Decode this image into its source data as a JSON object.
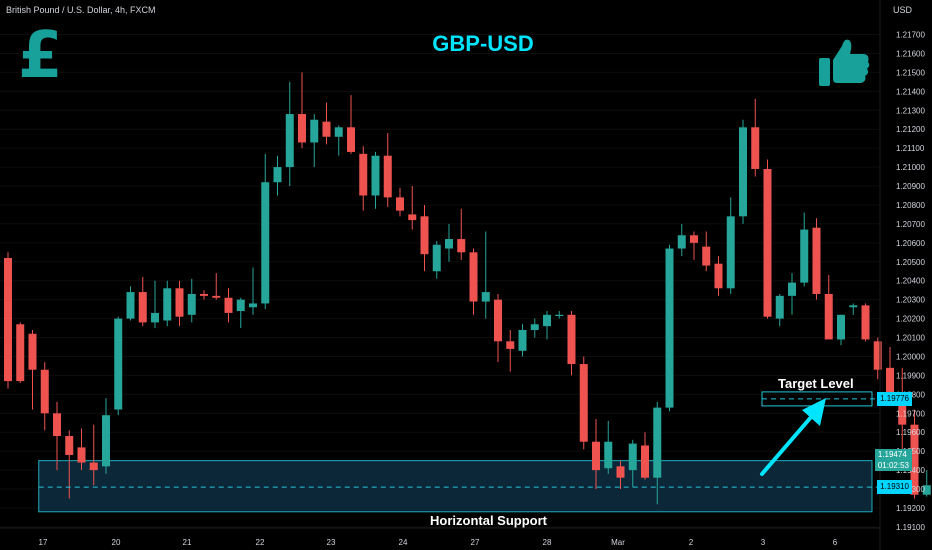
{
  "header": {
    "instrument": "British Pound / U.S. Dollar, 4h, FXCM",
    "currency": "USD"
  },
  "title": "GBP-USD",
  "icons": {
    "left": "pound-sign-icon",
    "right": "thumbs-up-icon"
  },
  "colors": {
    "up": "#26a69a",
    "down": "#ef5350",
    "accent": "#00e5ff",
    "box_fill": "#0d2a3a",
    "background": "#000000"
  },
  "chart_data": {
    "type": "candlestick",
    "timeframe": "4h",
    "symbol": "British Pound / U.S. Dollar",
    "ylabel": "USD",
    "ylim": [
      1.191,
      1.218
    ],
    "y_ticks": [
      1.217,
      1.216,
      1.215,
      1.214,
      1.213,
      1.212,
      1.211,
      1.21,
      1.209,
      1.208,
      1.207,
      1.206,
      1.205,
      1.204,
      1.203,
      1.202,
      1.201,
      1.2,
      1.199,
      1.198,
      1.197,
      1.196,
      1.195,
      1.194,
      1.193,
      1.192,
      1.191
    ],
    "x_labels": [
      "17",
      "20",
      "21",
      "22",
      "23",
      "24",
      "27",
      "28",
      "Mar",
      "2",
      "3",
      "6"
    ],
    "candles": [
      {
        "o": 1.2052,
        "h": 1.2055,
        "l": 1.1983,
        "c": 1.1987
      },
      {
        "o": 1.2017,
        "h": 1.2018,
        "l": 1.1986,
        "c": 1.1987
      },
      {
        "o": 1.2012,
        "h": 1.2014,
        "l": 1.1972,
        "c": 1.1993
      },
      {
        "o": 1.1993,
        "h": 1.1997,
        "l": 1.1961,
        "c": 1.197
      },
      {
        "o": 1.197,
        "h": 1.1976,
        "l": 1.194,
        "c": 1.1958
      },
      {
        "o": 1.1958,
        "h": 1.1961,
        "l": 1.1925,
        "c": 1.1948
      },
      {
        "o": 1.1952,
        "h": 1.1962,
        "l": 1.194,
        "c": 1.1944
      },
      {
        "o": 1.1944,
        "h": 1.1964,
        "l": 1.1932,
        "c": 1.194
      },
      {
        "o": 1.1942,
        "h": 1.1978,
        "l": 1.1938,
        "c": 1.1969
      },
      {
        "o": 1.1972,
        "h": 1.2021,
        "l": 1.1969,
        "c": 1.202
      },
      {
        "o": 1.202,
        "h": 1.2037,
        "l": 1.2019,
        "c": 1.2034
      },
      {
        "o": 1.2034,
        "h": 1.2042,
        "l": 1.2016,
        "c": 1.2018
      },
      {
        "o": 1.2018,
        "h": 1.204,
        "l": 1.2015,
        "c": 1.2023
      },
      {
        "o": 1.2019,
        "h": 1.204,
        "l": 1.2016,
        "c": 1.2036
      },
      {
        "o": 1.2036,
        "h": 1.204,
        "l": 1.2016,
        "c": 1.2021
      },
      {
        "o": 1.2022,
        "h": 1.2041,
        "l": 1.2018,
        "c": 1.2033
      },
      {
        "o": 1.2033,
        "h": 1.2035,
        "l": 1.203,
        "c": 1.2032
      },
      {
        "o": 1.2032,
        "h": 1.2044,
        "l": 1.203,
        "c": 1.2031
      },
      {
        "o": 1.2031,
        "h": 1.2036,
        "l": 1.2018,
        "c": 1.2023
      },
      {
        "o": 1.2024,
        "h": 1.2031,
        "l": 1.2015,
        "c": 1.203
      },
      {
        "o": 1.2026,
        "h": 1.2047,
        "l": 1.2022,
        "c": 1.2028
      },
      {
        "o": 1.2028,
        "h": 1.2107,
        "l": 1.2025,
        "c": 1.2092
      },
      {
        "o": 1.2092,
        "h": 1.2106,
        "l": 1.2085,
        "c": 1.21
      },
      {
        "o": 1.21,
        "h": 1.2145,
        "l": 1.209,
        "c": 1.2128
      },
      {
        "o": 1.2128,
        "h": 1.215,
        "l": 1.211,
        "c": 1.2113
      },
      {
        "o": 1.2113,
        "h": 1.2128,
        "l": 1.21,
        "c": 1.2125
      },
      {
        "o": 1.2124,
        "h": 1.2134,
        "l": 1.2112,
        "c": 1.2116
      },
      {
        "o": 1.2116,
        "h": 1.2122,
        "l": 1.2106,
        "c": 1.2121
      },
      {
        "o": 1.2121,
        "h": 1.2138,
        "l": 1.2107,
        "c": 1.2108
      },
      {
        "o": 1.2107,
        "h": 1.2111,
        "l": 1.2077,
        "c": 1.2085
      },
      {
        "o": 1.2085,
        "h": 1.2108,
        "l": 1.2078,
        "c": 1.2106
      },
      {
        "o": 1.2106,
        "h": 1.2118,
        "l": 1.2079,
        "c": 1.2084
      },
      {
        "o": 1.2084,
        "h": 1.2089,
        "l": 1.2074,
        "c": 1.2077
      },
      {
        "o": 1.2075,
        "h": 1.209,
        "l": 1.2067,
        "c": 1.2072
      },
      {
        "o": 1.2074,
        "h": 1.208,
        "l": 1.2045,
        "c": 1.2054
      },
      {
        "o": 1.2045,
        "h": 1.2061,
        "l": 1.2041,
        "c": 1.2059
      },
      {
        "o": 1.2057,
        "h": 1.207,
        "l": 1.205,
        "c": 1.2062
      },
      {
        "o": 1.2062,
        "h": 1.2078,
        "l": 1.2051,
        "c": 1.2055
      },
      {
        "o": 1.2055,
        "h": 1.2057,
        "l": 1.2022,
        "c": 1.2029
      },
      {
        "o": 1.2029,
        "h": 1.2066,
        "l": 1.202,
        "c": 1.2034
      },
      {
        "o": 1.203,
        "h": 1.2033,
        "l": 1.1997,
        "c": 1.2008
      },
      {
        "o": 1.2008,
        "h": 1.2014,
        "l": 1.1992,
        "c": 1.2004
      },
      {
        "o": 1.2003,
        "h": 1.2017,
        "l": 1.2,
        "c": 1.2014
      },
      {
        "o": 1.2014,
        "h": 1.202,
        "l": 1.201,
        "c": 1.2017
      },
      {
        "o": 1.2016,
        "h": 1.2024,
        "l": 1.2009,
        "c": 1.2022
      },
      {
        "o": 1.2022,
        "h": 1.2024,
        "l": 1.202,
        "c": 1.2022
      },
      {
        "o": 1.2022,
        "h": 1.2024,
        "l": 1.199,
        "c": 1.1996
      },
      {
        "o": 1.1996,
        "h": 1.2,
        "l": 1.1951,
        "c": 1.1955
      },
      {
        "o": 1.1955,
        "h": 1.1967,
        "l": 1.193,
        "c": 1.194
      },
      {
        "o": 1.1941,
        "h": 1.1966,
        "l": 1.1938,
        "c": 1.1955
      },
      {
        "o": 1.1942,
        "h": 1.1945,
        "l": 1.193,
        "c": 1.1936
      },
      {
        "o": 1.194,
        "h": 1.1956,
        "l": 1.1931,
        "c": 1.1954
      },
      {
        "o": 1.1953,
        "h": 1.196,
        "l": 1.1935,
        "c": 1.1936
      },
      {
        "o": 1.1936,
        "h": 1.1976,
        "l": 1.1922,
        "c": 1.1973
      },
      {
        "o": 1.1973,
        "h": 1.2059,
        "l": 1.1971,
        "c": 1.2057
      },
      {
        "o": 1.2057,
        "h": 1.207,
        "l": 1.2053,
        "c": 1.2064
      },
      {
        "o": 1.2064,
        "h": 1.2066,
        "l": 1.2051,
        "c": 1.206
      },
      {
        "o": 1.2058,
        "h": 1.2066,
        "l": 1.2045,
        "c": 1.2048
      },
      {
        "o": 1.2049,
        "h": 1.2053,
        "l": 1.2032,
        "c": 1.2036
      },
      {
        "o": 1.2036,
        "h": 1.2084,
        "l": 1.2033,
        "c": 1.2074
      },
      {
        "o": 1.2074,
        "h": 1.2125,
        "l": 1.207,
        "c": 1.2121
      },
      {
        "o": 1.2121,
        "h": 1.2136,
        "l": 1.2095,
        "c": 1.2099
      },
      {
        "o": 1.2099,
        "h": 1.2104,
        "l": 1.202,
        "c": 1.2021
      },
      {
        "o": 1.202,
        "h": 1.2033,
        "l": 1.2016,
        "c": 1.2032
      },
      {
        "o": 1.2032,
        "h": 1.2044,
        "l": 1.2022,
        "c": 1.2039
      },
      {
        "o": 1.2039,
        "h": 1.2076,
        "l": 1.2037,
        "c": 1.2067
      },
      {
        "o": 1.2068,
        "h": 1.2073,
        "l": 1.203,
        "c": 1.2033
      },
      {
        "o": 1.2033,
        "h": 1.2043,
        "l": 1.201,
        "c": 1.2009
      },
      {
        "o": 1.2009,
        "h": 1.2022,
        "l": 1.2006,
        "c": 1.2022
      },
      {
        "o": 1.2026,
        "h": 1.2028,
        "l": 1.2022,
        "c": 1.2027
      },
      {
        "o": 1.2027,
        "h": 1.2028,
        "l": 1.2008,
        "c": 1.2009
      },
      {
        "o": 1.2008,
        "h": 1.201,
        "l": 1.1988,
        "c": 1.1993
      },
      {
        "o": 1.1994,
        "h": 1.2005,
        "l": 1.1975,
        "c": 1.198
      },
      {
        "o": 1.198,
        "h": 1.1994,
        "l": 1.1948,
        "c": 1.1964
      },
      {
        "o": 1.1964,
        "h": 1.1972,
        "l": 1.1925,
        "c": 1.1927
      },
      {
        "o": 1.1927,
        "h": 1.194,
        "l": 1.1926,
        "c": 1.1932
      },
      {
        "o": 1.1934,
        "h": 1.195,
        "l": 1.1927,
        "c": 1.1946
      }
    ],
    "zones": [
      {
        "label": "Horizontal Support",
        "from": 1.1918,
        "to": 1.1945,
        "start_index": 3,
        "end_index": null
      }
    ],
    "levels": [
      {
        "name": "support-midline",
        "price": 1.1931,
        "tag": "1.19310"
      },
      {
        "name": "target-level",
        "price": 1.19776,
        "tag": "1.19776",
        "label": "Target Level"
      }
    ],
    "current_price": {
      "price": "1.19474",
      "countdown": "01:02:53"
    }
  }
}
